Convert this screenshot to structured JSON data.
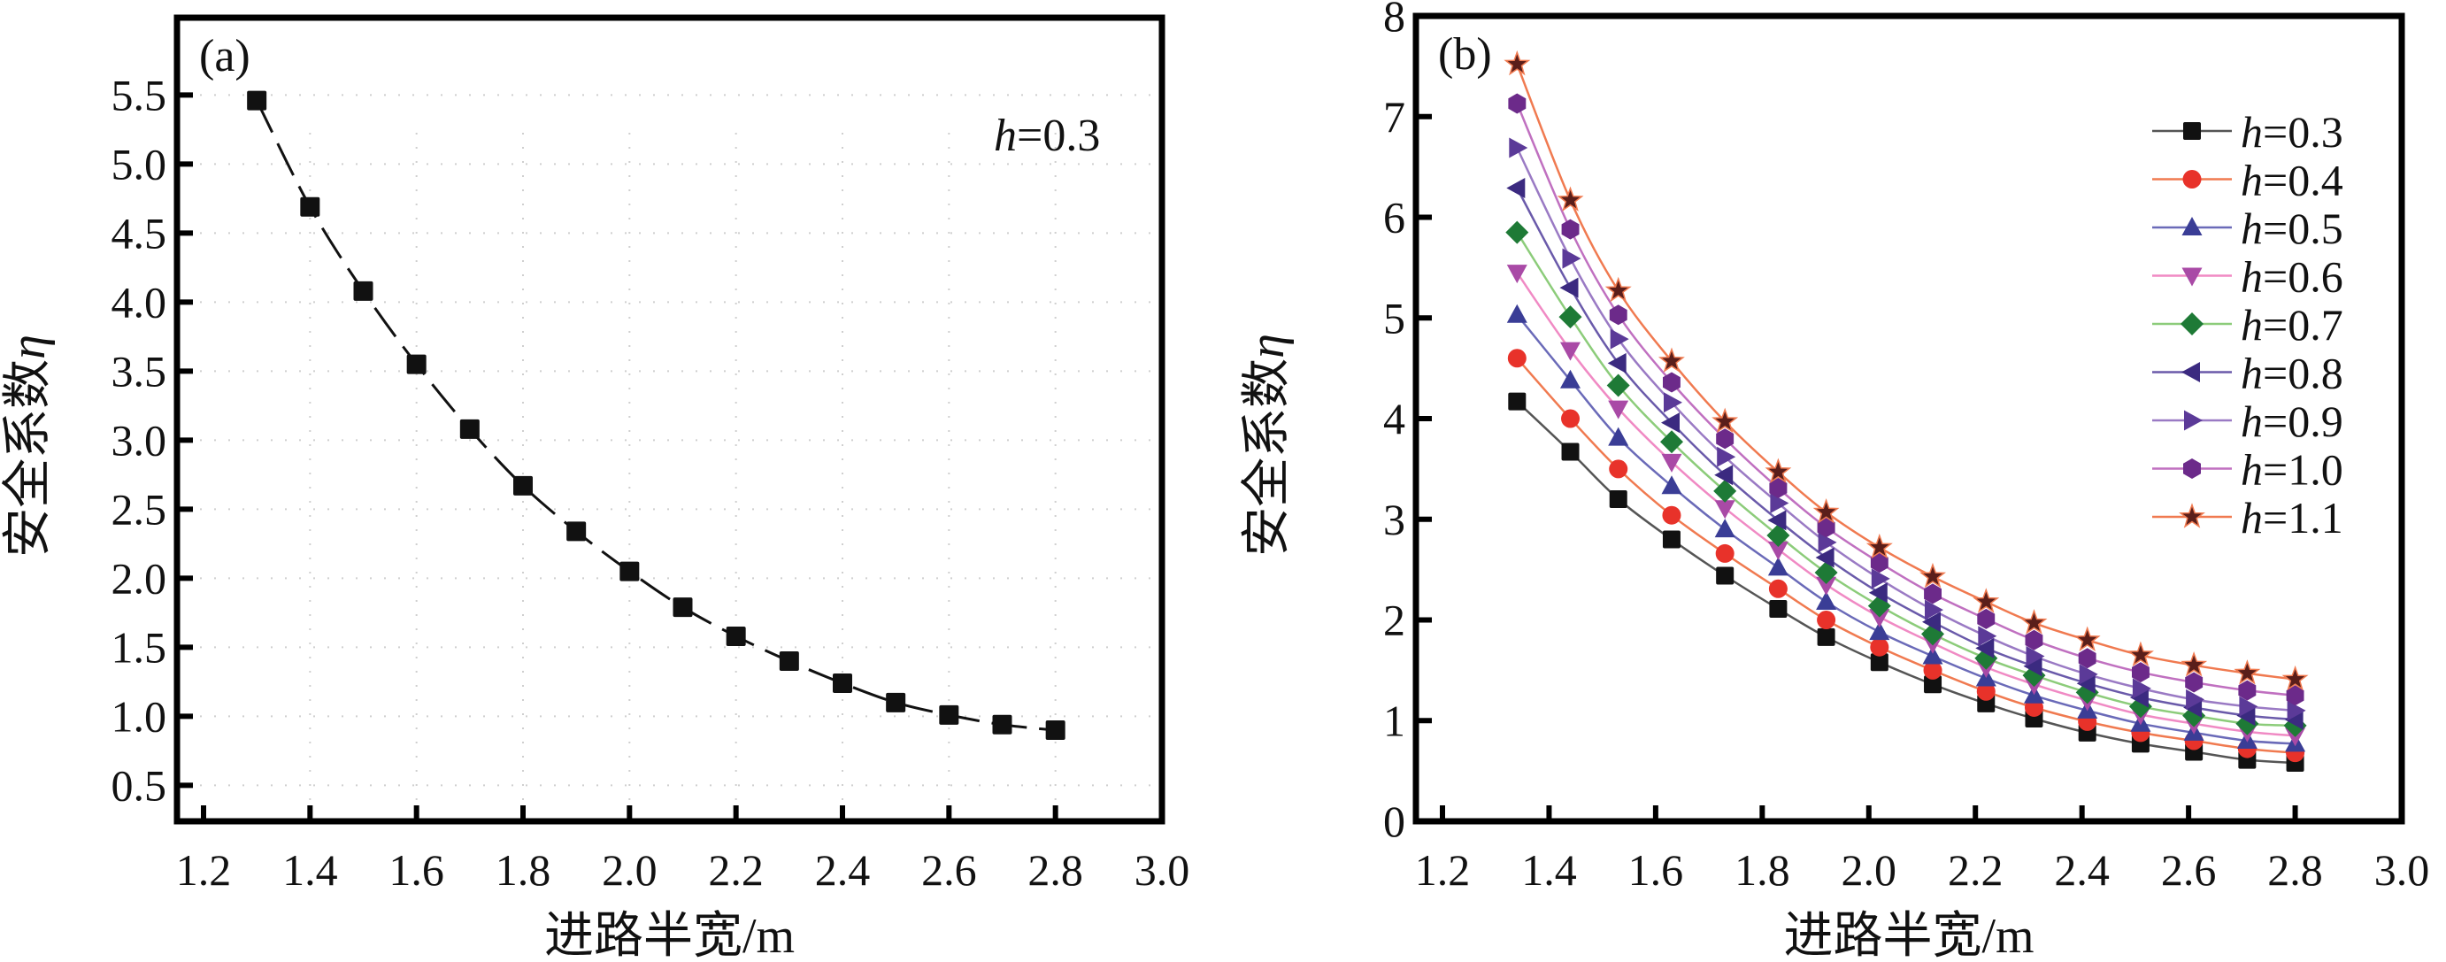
{
  "chart_data": [
    {
      "panel": "(a)",
      "type": "line",
      "title": "",
      "xlabel": "进路半宽/m",
      "ylabel_text": "安全系数",
      "ylabel_symbol": "η",
      "xlim": [
        1.2,
        3.0
      ],
      "ylim": [
        0.24,
        6.06
      ],
      "xticks": [
        1.2,
        1.4,
        1.6,
        1.8,
        2.0,
        2.2,
        2.4,
        2.6,
        2.8,
        3.0
      ],
      "xtick_labels": [
        "1.2",
        "1.4",
        "1.6",
        "1.8",
        "2.0",
        "2.2",
        "2.4",
        "2.6",
        "2.8",
        "3.0"
      ],
      "yticks": [
        0.5,
        1.0,
        1.5,
        2.0,
        2.5,
        3.0,
        3.5,
        4.0,
        4.5,
        5.0,
        5.5
      ],
      "ytick_labels": [
        "0.5",
        "1.0",
        "1.5",
        "2.0",
        "2.5",
        "3.0",
        "3.5",
        "4.0",
        "4.5",
        "5.0",
        "5.5"
      ],
      "grid": true,
      "annotation": {
        "italic": "h",
        "rest": "=0.3"
      },
      "series": [
        {
          "name": "h=0.3",
          "color": "#111111",
          "marker": "square",
          "line": "dash",
          "x": [
            1.3,
            1.4,
            1.5,
            1.6,
            1.7,
            1.8,
            1.9,
            2.0,
            2.1,
            2.2,
            2.3,
            2.4,
            2.5,
            2.6,
            2.7,
            2.8
          ],
          "y": [
            5.46,
            4.69,
            4.08,
            3.55,
            3.08,
            2.67,
            2.34,
            2.05,
            1.79,
            1.58,
            1.4,
            1.24,
            1.1,
            1.01,
            0.94,
            0.9
          ]
        }
      ]
    },
    {
      "panel": "(b)",
      "type": "line",
      "title": "",
      "xlabel": "进路半宽/m",
      "ylabel_text": "安全系数",
      "ylabel_symbol": "η",
      "xlim": [
        1.2,
        3.0
      ],
      "ylim": [
        0,
        8.0
      ],
      "xticks": [
        1.2,
        1.4,
        1.6,
        1.8,
        2.0,
        2.2,
        2.4,
        2.6,
        2.8,
        3.0
      ],
      "xtick_labels": [
        "1.2",
        "1.4",
        "1.6",
        "1.8",
        "2.0",
        "2.2",
        "2.4",
        "2.6",
        "2.8",
        "3.0"
      ],
      "yticks": [
        0,
        1,
        2,
        3,
        4,
        5,
        6,
        7,
        8
      ],
      "ytick_labels": [
        "0",
        "1",
        "2",
        "3",
        "4",
        "5",
        "6",
        "7",
        "8"
      ],
      "grid": false,
      "legend_position": "top-right",
      "x": [
        1.34,
        1.44,
        1.53,
        1.63,
        1.73,
        1.83,
        1.92,
        2.02,
        2.12,
        2.22,
        2.31,
        2.41,
        2.51,
        2.61,
        2.71,
        2.8
      ],
      "series": [
        {
          "name": "h=0.3",
          "h": "0.3",
          "color": "#111111",
          "line_color": "#555555",
          "marker": "square",
          "y": [
            4.17,
            3.67,
            3.2,
            2.8,
            2.44,
            2.11,
            1.83,
            1.58,
            1.36,
            1.17,
            1.02,
            0.88,
            0.77,
            0.69,
            0.61,
            0.58
          ]
        },
        {
          "name": "h=0.4",
          "h": "0.4",
          "color": "#e8322a",
          "line_color": "#f07a50",
          "marker": "circle",
          "y": [
            4.6,
            4.0,
            3.5,
            3.04,
            2.66,
            2.31,
            2.0,
            1.73,
            1.5,
            1.29,
            1.13,
            0.99,
            0.88,
            0.8,
            0.72,
            0.68
          ]
        },
        {
          "name": "h=0.5",
          "h": "0.5",
          "color": "#3a3d96",
          "line_color": "#6a6ab8",
          "marker": "triangle-up",
          "y": [
            5.03,
            4.38,
            3.81,
            3.33,
            2.9,
            2.52,
            2.18,
            1.88,
            1.64,
            1.42,
            1.25,
            1.1,
            0.97,
            0.88,
            0.8,
            0.77
          ]
        },
        {
          "name": "h=0.6",
          "h": "0.6",
          "color": "#a94aa6",
          "line_color": "#f08ac4",
          "marker": "triangle-down",
          "y": [
            5.45,
            4.68,
            4.1,
            3.57,
            3.11,
            2.7,
            2.35,
            2.03,
            1.77,
            1.53,
            1.36,
            1.2,
            1.06,
            0.97,
            0.89,
            0.85
          ]
        },
        {
          "name": "h=0.7",
          "h": "0.7",
          "color": "#1e7a36",
          "line_color": "#8ccc7a",
          "marker": "diamond",
          "y": [
            5.85,
            5.01,
            4.33,
            3.77,
            3.28,
            2.84,
            2.47,
            2.14,
            1.86,
            1.62,
            1.45,
            1.28,
            1.14,
            1.05,
            0.97,
            0.95
          ]
        },
        {
          "name": "h=0.8",
          "h": "0.8",
          "color": "#3b2a80",
          "line_color": "#6a5aaa",
          "marker": "triangle-left",
          "y": [
            6.29,
            5.3,
            4.55,
            3.96,
            3.44,
            2.99,
            2.62,
            2.27,
            1.98,
            1.72,
            1.54,
            1.37,
            1.23,
            1.13,
            1.05,
            1.01
          ]
        },
        {
          "name": "h=0.9",
          "h": "0.9",
          "color": "#5b3a98",
          "line_color": "#9a7ac4",
          "marker": "triangle-right",
          "y": [
            6.69,
            5.59,
            4.79,
            4.16,
            3.62,
            3.16,
            2.77,
            2.41,
            2.1,
            1.84,
            1.64,
            1.46,
            1.32,
            1.21,
            1.14,
            1.1
          ]
        },
        {
          "name": "h=1.0",
          "h": "1.0",
          "color": "#6c2a8a",
          "line_color": "#c070c0",
          "marker": "hexagon",
          "y": [
            7.13,
            5.88,
            5.03,
            4.36,
            3.8,
            3.31,
            2.92,
            2.57,
            2.26,
            2.01,
            1.8,
            1.62,
            1.48,
            1.38,
            1.3,
            1.25
          ]
        },
        {
          "name": "h=1.1",
          "h": "1.1",
          "color": "#5a1e1a",
          "line_color": "#f07a50",
          "marker": "star",
          "y": [
            7.52,
            6.17,
            5.27,
            4.57,
            3.97,
            3.47,
            3.07,
            2.72,
            2.43,
            2.18,
            1.97,
            1.8,
            1.65,
            1.55,
            1.47,
            1.41
          ]
        }
      ]
    }
  ]
}
